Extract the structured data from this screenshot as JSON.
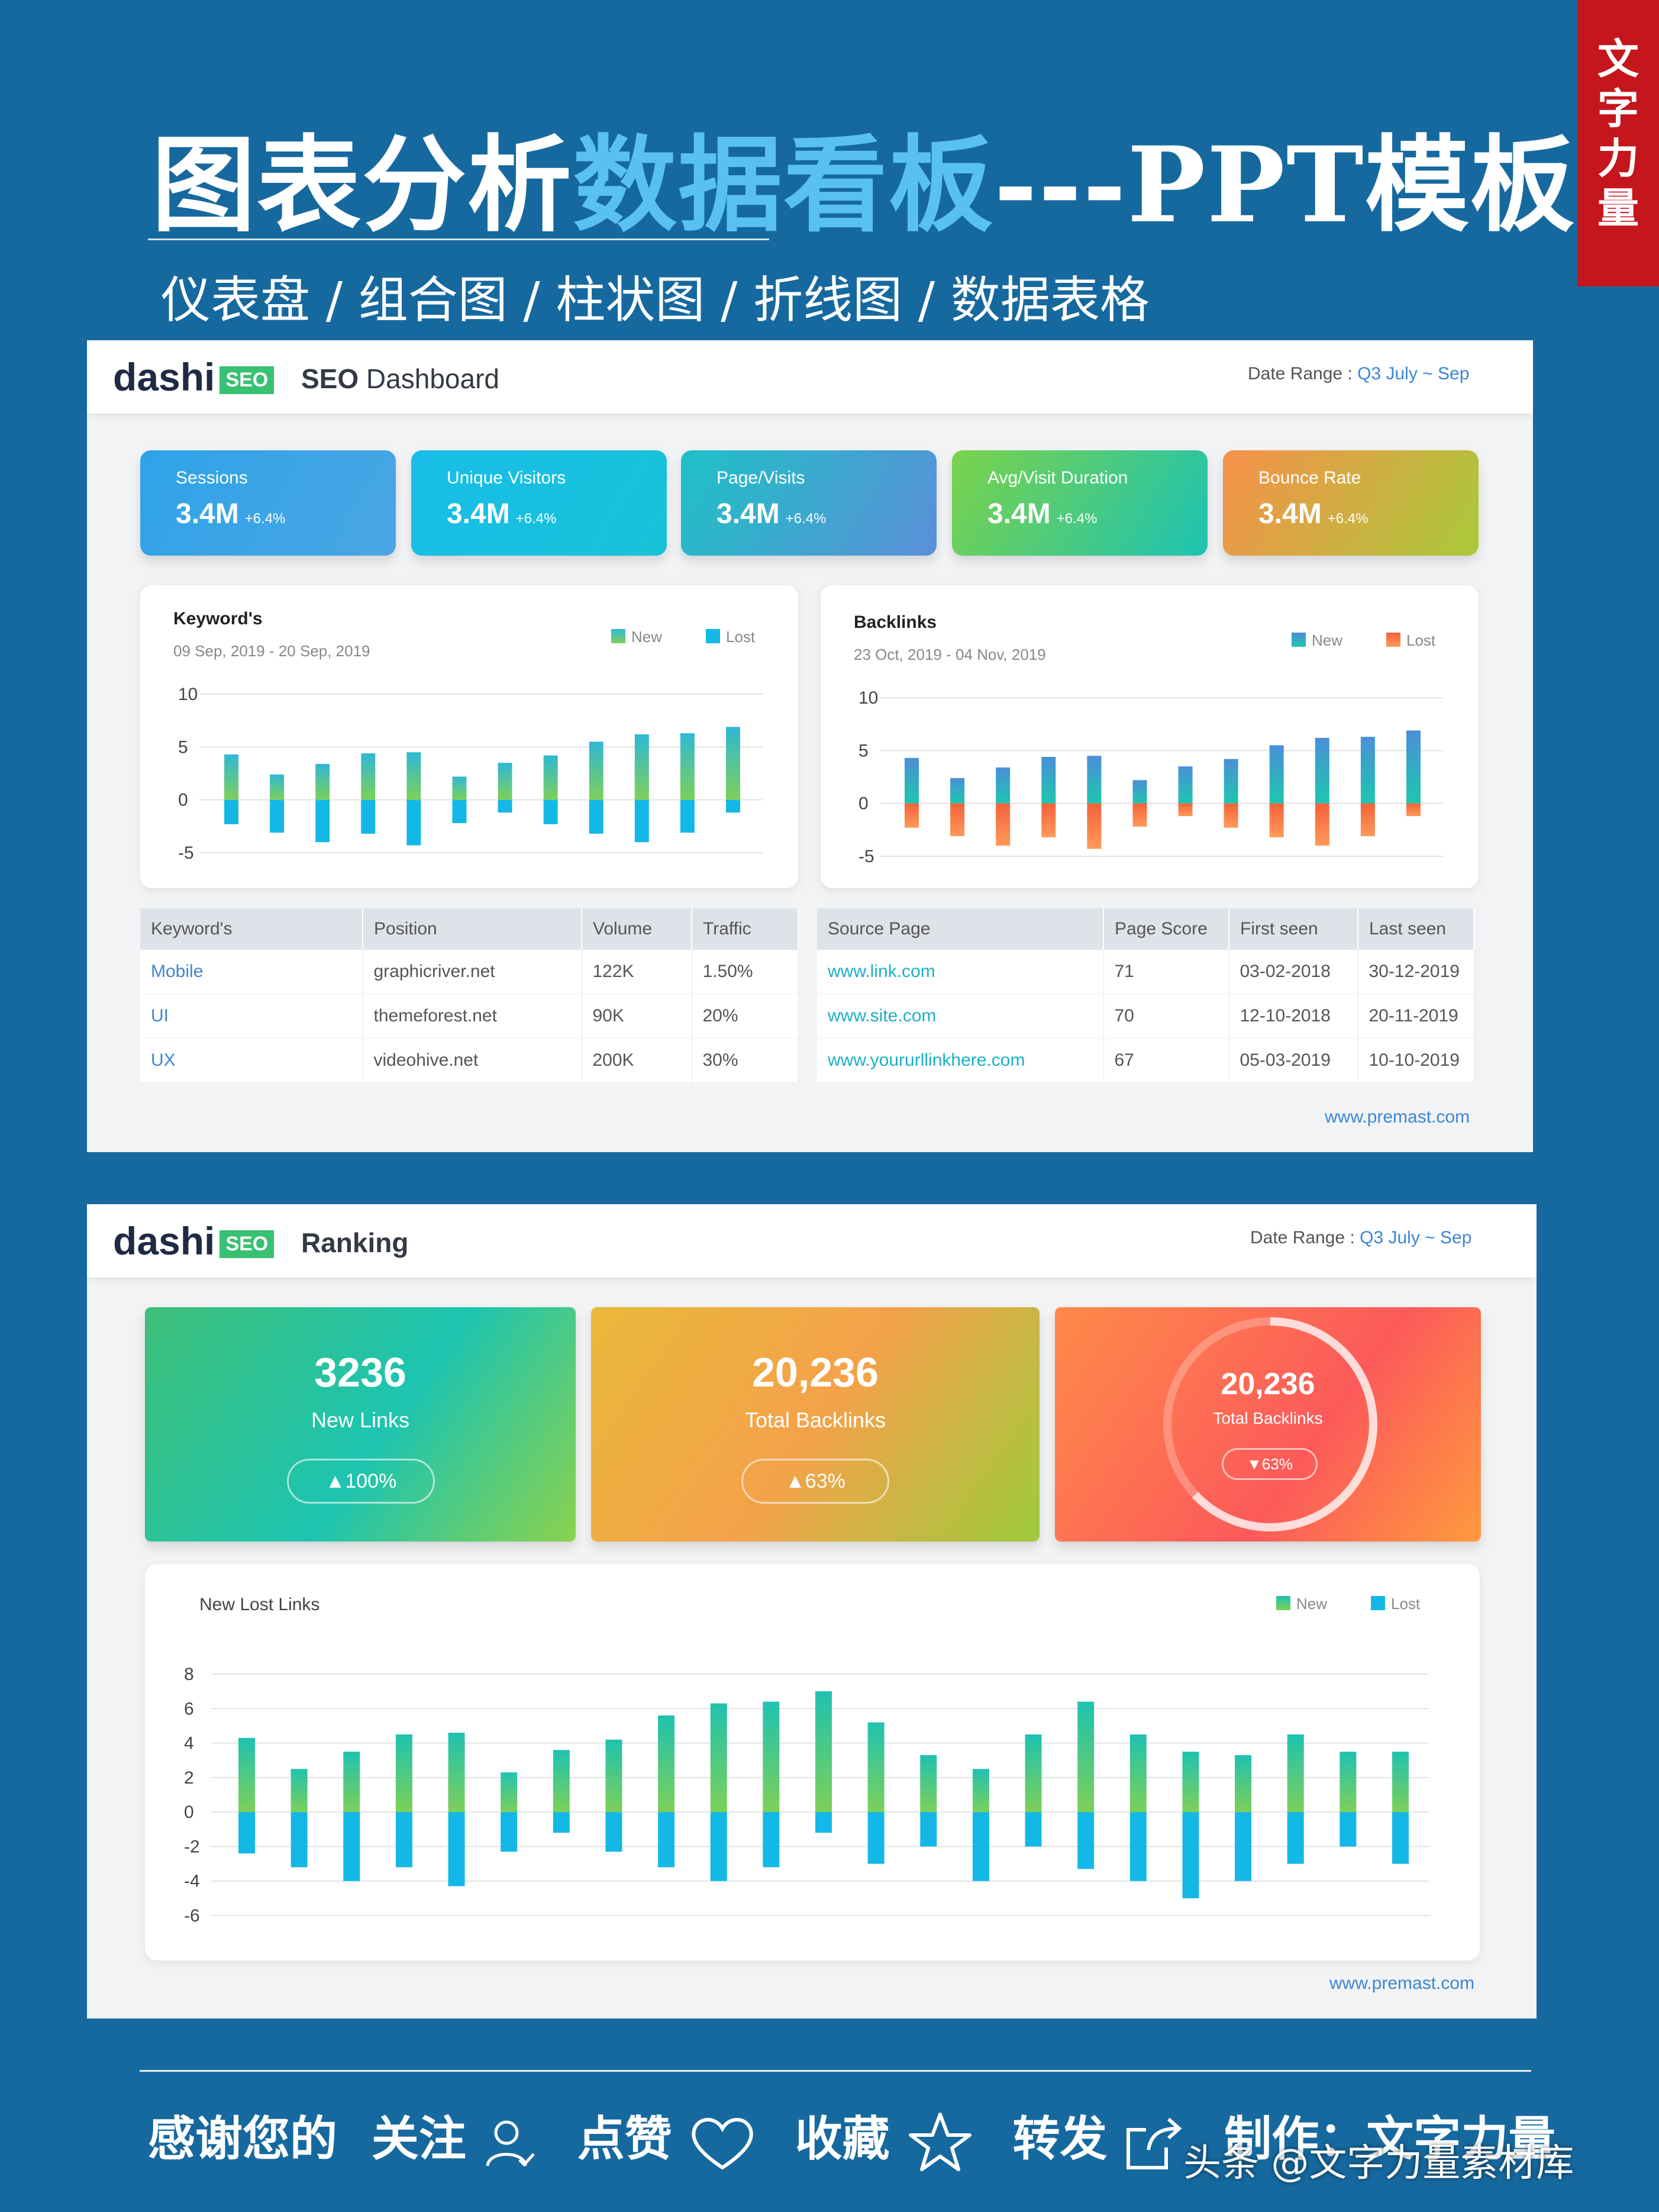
{
  "header": {
    "title_a": "图表分析",
    "title_b": "数据看板",
    "title_c": "---PPT模板",
    "subtitle": "仪表盘 / 组合图 / 柱状图 / 折线图 / 数据表格",
    "badge": "文字力量"
  },
  "slide1": {
    "logo": "dashi",
    "logo_badge": "SEO",
    "title_bold": "SEO",
    "title_rest": " Dashboard",
    "date_label": "Date Range : ",
    "date_value": "Q3 July ~ Sep",
    "kpis": [
      {
        "label": "Sessions",
        "value": "3.4M",
        "change": "+6.4%",
        "c1": "#2fa3e8",
        "c2": "#4aa6e4"
      },
      {
        "label": "Unique Visitors",
        "value": "3.4M",
        "change": "+6.4%",
        "c1": "#19bde8",
        "c2": "#17c2d8"
      },
      {
        "label": "Page/Visits",
        "value": "3.4M",
        "change": "+6.4%",
        "c1": "#1ec1c6",
        "c2": "#5b8fd8"
      },
      {
        "label": "Avg/Visit Duration",
        "value": "3.4M",
        "change": "+6.4%",
        "c1": "#7bd24a",
        "c2": "#1dc3b3"
      },
      {
        "label": "Bounce Rate",
        "value": "3.4M",
        "change": "+6.4%",
        "c1": "#f7914a",
        "c2": "#a9c93a"
      }
    ],
    "keywords_card": {
      "title": "Keyword's",
      "date": "09 Sep, 2019 - 20 Sep, 2019"
    },
    "backlinks_card": {
      "title": "Backlinks",
      "date": "23 Oct, 2019 - 04 Nov, 2019"
    },
    "keywords_table": {
      "headers": [
        "Keyword's",
        "Position",
        "Volume",
        "Traffic"
      ],
      "rows": [
        [
          "Mobile",
          "graphicriver.net",
          "122K",
          "1.50%"
        ],
        [
          "UI",
          "themeforest.net",
          "90K",
          "20%"
        ],
        [
          "UX",
          "videohive.net",
          "200K",
          "30%"
        ]
      ]
    },
    "backlinks_table": {
      "headers": [
        "Source Page",
        "Page Score",
        "First seen",
        "Last seen"
      ],
      "rows": [
        [
          "www.link.com",
          "71",
          "03-02-2018",
          "30-12-2019"
        ],
        [
          "www.site.com",
          "70",
          "12-10-2018",
          "20-11-2019"
        ],
        [
          "www.yoururllinkhere.com",
          "67",
          "05-03-2019",
          "10-10-2019"
        ]
      ]
    },
    "footer_url": "www.premast.com"
  },
  "slide2": {
    "logo": "dashi",
    "logo_badge": "SEO",
    "title": "Ranking",
    "date_label": "Date Range : ",
    "date_value": "Q3 July ~ Sep",
    "cards": [
      {
        "value": "3236",
        "label": "New Links",
        "change": "▲100%"
      },
      {
        "value": "20,236",
        "label": "Total Backlinks",
        "change": "▲63%"
      },
      {
        "value": "20,236",
        "label": "Total Backlinks",
        "change": "▼63%",
        "ring_fraction": 0.63
      }
    ],
    "chart_title": "New Lost Links",
    "footer_url": "www.premast.com"
  },
  "bottom": {
    "thanks": "感谢您的",
    "follow": "关注",
    "like": "点赞",
    "collect": "收藏",
    "share": "转发",
    "maker": "制作：文字力量",
    "watermark": "头条 @文字力量素材库"
  },
  "chart_data": [
    {
      "type": "bar",
      "title": "Keyword's",
      "subtitle": "09 Sep, 2019 - 20 Sep, 2019",
      "ylim": [
        -5,
        10
      ],
      "yticks": [
        10,
        5,
        0,
        -5
      ],
      "series": [
        {
          "name": "New",
          "color": "#2fc27a",
          "values": [
            4.3,
            2.4,
            3.4,
            4.4,
            4.5,
            2.2,
            3.5,
            4.2,
            5.5,
            6.2,
            6.3,
            6.9
          ]
        },
        {
          "name": "Lost",
          "color": "#13b8e6",
          "values": [
            -2.3,
            -3.1,
            -4.0,
            -3.2,
            -4.3,
            -2.2,
            -1.2,
            -2.3,
            -3.2,
            -4.0,
            -3.1,
            -1.2
          ]
        }
      ],
      "legend": "top-right",
      "grid": true
    },
    {
      "type": "bar",
      "title": "Backlinks",
      "subtitle": "23 Oct, 2019 - 04 Nov, 2019",
      "ylim": [
        -5,
        10
      ],
      "yticks": [
        10,
        5,
        0,
        -5
      ],
      "series": [
        {
          "name": "New",
          "color": "#3a9ed6",
          "values": [
            4.3,
            2.4,
            3.4,
            4.4,
            4.5,
            2.2,
            3.5,
            4.2,
            5.5,
            6.2,
            6.3,
            6.9
          ]
        },
        {
          "name": "Lost",
          "color": "#f4623a",
          "values": [
            -2.3,
            -3.1,
            -4.0,
            -3.2,
            -4.3,
            -2.2,
            -1.2,
            -2.3,
            -3.2,
            -4.0,
            -3.1,
            -1.2
          ]
        }
      ],
      "legend": "top-right",
      "grid": true
    },
    {
      "type": "bar",
      "title": "New Lost Links",
      "ylim": [
        -6,
        8
      ],
      "yticks": [
        8,
        6,
        4,
        2,
        0,
        -2,
        -4,
        -6
      ],
      "series": [
        {
          "name": "New",
          "color": "#2fc27a",
          "values": [
            4.3,
            2.5,
            3.5,
            4.5,
            4.6,
            2.3,
            3.6,
            4.2,
            5.6,
            6.3,
            6.4,
            7.0,
            5.2,
            3.3,
            2.5,
            4.5,
            6.4,
            4.5,
            3.5,
            3.3,
            4.5,
            3.5,
            3.5
          ]
        },
        {
          "name": "Lost",
          "color": "#13b8e6",
          "values": [
            -2.4,
            -3.2,
            -4.0,
            -3.2,
            -4.3,
            -2.3,
            -1.2,
            -2.3,
            -3.2,
            -4.0,
            -3.2,
            -1.2,
            -3.0,
            -2.0,
            -4.0,
            -2.0,
            -3.3,
            -4.0,
            -5.0,
            -4.0,
            -3.0,
            -2.0,
            -3.0
          ]
        }
      ],
      "legend": "top-right",
      "grid": true
    }
  ]
}
